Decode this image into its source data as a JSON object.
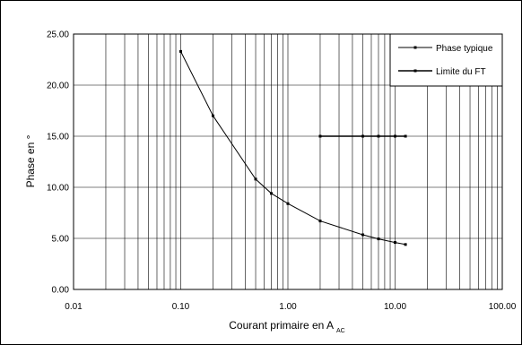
{
  "chart_data": {
    "type": "line",
    "title": "",
    "xlabel": "Courant primaire en A",
    "xlabel_sub": "AC",
    "ylabel": "Phase en °",
    "xscale": "log",
    "xlim": [
      0.01,
      100
    ],
    "ylim": [
      0,
      25
    ],
    "x_ticks": [
      0.01,
      0.1,
      1,
      10,
      100
    ],
    "x_tick_labels": [
      "0.01",
      "0.10",
      "1.00",
      "10.00",
      "100.00"
    ],
    "y_ticks": [
      0,
      5,
      10,
      15,
      20,
      25
    ],
    "y_tick_labels": [
      "0.00",
      "5.00",
      "10.00",
      "15.00",
      "20.00",
      "25.00"
    ],
    "grid": true,
    "legend_position": "top-right",
    "series": [
      {
        "name": "Phase typique",
        "x": [
          0.1,
          0.2,
          0.5,
          0.7,
          1.0,
          2.0,
          5.0,
          7.0,
          10.0,
          12.5
        ],
        "y": [
          23.3,
          17.0,
          10.8,
          9.4,
          8.4,
          6.7,
          5.35,
          4.95,
          4.6,
          4.4
        ]
      },
      {
        "name": "Limite du FT",
        "x": [
          2.0,
          5.0,
          7.0,
          10.0,
          12.5
        ],
        "y": [
          15.0,
          15.0,
          15.0,
          15.0,
          15.0
        ]
      }
    ]
  }
}
